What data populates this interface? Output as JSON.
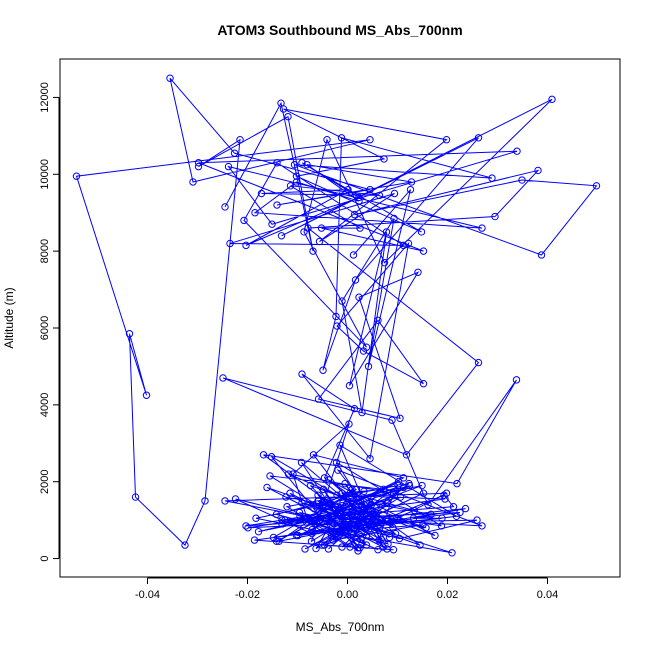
{
  "chart_data": {
    "type": "line",
    "title": "ATOM3 Southbound MS_Abs_700nm",
    "xlabel": "MS_Abs_700nm",
    "ylabel": "Altitude (m)",
    "xlim": [
      -0.0575,
      0.0545
    ],
    "ylim": [
      -480,
      13000
    ],
    "x_ticks": [
      -0.04,
      -0.02,
      0.0,
      0.02,
      0.04
    ],
    "x_tick_labels": [
      "-0.04",
      "-0.02",
      "0.00",
      "0.02",
      "0.04"
    ],
    "y_ticks": [
      0,
      2000,
      4000,
      6000,
      8000,
      10000,
      12000
    ],
    "y_tick_labels": [
      "0",
      "2000",
      "4000",
      "6000",
      "8000",
      "10000",
      "12000"
    ],
    "series_color": "#0000ff",
    "marker": "open-circle",
    "grid": false,
    "series": [
      {
        "x": [
          -0.0038,
          0.0007,
          -0.0102,
          0.0058,
          0.0029,
          -0.0048,
          0.0021,
          -0.0092,
          0.0084,
          -0.0031,
          0.0149,
          -0.0061,
          0.0043,
          -0.0118,
          0.0092,
          0.0063,
          -0.0068,
          0.0112,
          -0.0142,
          0.0102,
          0.0047,
          0.0005,
          -0.0082,
          0.0124,
          0.0019,
          -0.0011,
          0.0072,
          -0.0155,
          0.0038,
          -0.0096,
          0.0055,
          0.0009,
          -0.0059,
          0.0035,
          -0.0125,
          0.0068,
          -0.0021,
          0.0195,
          0.0017,
          -0.0199,
          0.0042,
          0.0259,
          0.0104,
          -0.0224,
          -0.0071,
          0.0151,
          -0.0029,
          0.0193,
          0.0212,
          -0.0131,
          0.0225,
          -0.0186,
          0.0092,
          -0.0051,
          0.0045,
          0.0167,
          0.0025,
          0.0189,
          0.0132,
          0.0236,
          0.0012,
          -0.0168,
          0.0219,
          0.0338,
          0.0161,
          0.0089,
          -0.0249,
          0.0118,
          0.0262,
          -0.0079,
          0.0295,
          0.0381,
          0.0014,
          0.0349,
          0.0498,
          0.0388,
          -0.0106,
          0.0289,
          -0.0012,
          -0.0023,
          -0.0049,
          0.0016,
          0.0262,
          -0.0132,
          0.0409,
          0.0074,
          -0.0041,
          -0.0087,
          0.0038,
          -0.0207,
          -0.0141,
          0.0112,
          -0.0235,
          0.0094,
          -0.0056,
          0.0198,
          -0.0128,
          0.0073,
          -0.0102,
          0.0148,
          -0.0091,
          0.0023,
          -0.0203,
          0.0001,
          -0.0172,
          0.0064,
          -0.0114,
          0.0025,
          -0.0052,
          0.0152,
          -0.0298,
          0.0339,
          -0.0151,
          -0.0238,
          0.0269,
          -0.0185,
          -0.0102,
          0.0023,
          -0.0081,
          0.0128,
          -0.0141,
          0.0045,
          -0.0226,
          -0.0355,
          -0.0309,
          0.0045,
          -0.0542,
          -0.0402,
          -0.0436,
          -0.0424,
          -0.0325,
          -0.0285,
          -0.0215,
          -0.0298,
          -0.0119,
          -0.0069,
          -0.0133,
          -0.0245
        ],
        "y": [
          250,
          780,
          600,
          1100,
          400,
          1800,
          280,
          2500,
          550,
          1400,
          1900,
          900,
          1300,
          2200,
          1700,
          480,
          2700,
          2100,
          450,
          2000,
          1600,
          300,
          950,
          1900,
          1150,
          1700,
          1800,
          2150,
          600,
          1200,
          750,
          1350,
          1500,
          780,
          1000,
          950,
          1650,
          1550,
          1250,
          800,
          950,
          1000,
          520,
          1550,
          650,
          880,
          480,
          1650,
          1350,
          1000,
          1200,
          480,
          230,
          350,
          1450,
          1150,
          850,
          1050,
          1050,
          1300,
          1000,
          2700,
          1950,
          4650,
          1400,
          3600,
          4700,
          2700,
          5100,
          8600,
          8900,
          10100,
          8950,
          9850,
          9700,
          7900,
          10250,
          9900,
          10950,
          6300,
          4900,
          7250,
          10950,
          8400,
          11950,
          7700,
          10900,
          8500,
          5500,
          8800,
          10300,
          8150,
          8200,
          9500,
          8250,
          10900,
          11700,
          10400,
          9950,
          8500,
          10300,
          9400,
          8150,
          9600,
          9500,
          9450,
          9700,
          8600,
          8600,
          8000,
          10300,
          10600,
          8700,
          10200,
          8600,
          9000,
          9800,
          9300,
          10250,
          9800,
          9200,
          9600,
          10550,
          12500,
          9800,
          10900,
          9950,
          4250,
          5850,
          1600,
          350,
          1500,
          10900,
          10200,
          11500,
          8000,
          11850,
          9150
        ],
        "point_order": [
          [
            0.0061,
            230
          ],
          [
            -0.0081,
            1050
          ],
          [
            -0.0109,
            2200
          ],
          [
            0.0003,
            3500
          ],
          [
            -0.0072,
            450
          ],
          [
            0.0048,
            1400
          ],
          [
            -0.0131,
            900
          ],
          [
            0.0123,
            1950
          ],
          [
            -0.0021,
            550
          ],
          [
            -0.0152,
            2650
          ],
          [
            0.0091,
            800
          ],
          [
            0.0009,
            1800
          ],
          [
            -0.0063,
            260
          ],
          [
            0.0106,
            1600
          ],
          [
            -0.0178,
            700
          ],
          [
            0.0032,
            1250
          ],
          [
            -0.0038,
            2050
          ],
          [
            0.0145,
            350
          ],
          [
            -0.0091,
            1450
          ],
          [
            0.0055,
            950
          ],
          [
            -0.0005,
            1950
          ],
          [
            0.0067,
            500
          ],
          [
            -0.0115,
            1700
          ],
          [
            0.0025,
            280
          ],
          [
            -0.0049,
            1300
          ],
          [
            0.0188,
            850
          ],
          [
            -0.0022,
            2500
          ],
          [
            0.0081,
            380
          ],
          [
            -0.0142,
            1150
          ],
          [
            0.0033,
            1750
          ],
          [
            -0.0071,
            750
          ],
          [
            0.0011,
            1250
          ],
          [
            -0.0099,
            600
          ],
          [
            0.0218,
            1100
          ],
          [
            -0.0015,
            2950
          ],
          [
            0.0071,
            300
          ],
          [
            -0.0161,
            1850
          ],
          [
            0.0047,
            900
          ],
          [
            -0.0058,
            1500
          ],
          [
            0.0021,
            200
          ],
          [
            -0.0121,
            1350
          ],
          [
            0.0101,
            1900
          ],
          [
            -0.0032,
            600
          ],
          [
            0.0152,
            1700
          ],
          [
            -0.0085,
            250
          ],
          [
            0.0029,
            1050
          ],
          [
            -0.0203,
            850
          ],
          [
            0.0079,
            1450
          ],
          [
            -0.0046,
            350
          ],
          [
            0.0134,
            1250
          ],
          [
            0.0005,
            1700
          ],
          [
            -0.0137,
            450
          ],
          [
            0.0061,
            950
          ],
          [
            -0.0019,
            2300
          ],
          [
            0.0269,
            850
          ],
          [
            -0.0095,
            1100
          ],
          [
            0.0038,
            350
          ],
          [
            -0.0059,
            1650
          ],
          [
            0.0096,
            650
          ],
          [
            -0.0245,
            1500
          ],
          [
            0.0198,
            1700
          ],
          [
            -0.0011,
            300
          ],
          [
            0.0112,
            1850
          ],
          [
            -0.0183,
            1050
          ],
          [
            0.0027,
            500
          ],
          [
            -0.0074,
            1900
          ],
          [
            0.0157,
            800
          ],
          [
            -0.0035,
            1400
          ],
          [
            0.0079,
            250
          ],
          [
            -0.0123,
            1600
          ],
          [
            0.0052,
            1150
          ],
          [
            -0.0031,
            700
          ],
          [
            0.0209,
            150
          ],
          [
            -0.0067,
            1300
          ],
          [
            0.0018,
            1800
          ],
          [
            -0.0148,
            550
          ],
          [
            0.0089,
            1000
          ],
          [
            -0.0009,
            1450
          ],
          [
            0.0175,
            600
          ],
          [
            -0.0046,
            2100
          ],
          [
            0.0014,
            3900
          ],
          [
            -0.0091,
            4800
          ],
          [
            0.0045,
            2600
          ],
          [
            0.0122,
            8200
          ],
          [
            -0.0021,
            6050
          ],
          [
            0.0032,
            5400
          ],
          [
            0.0152,
            4550
          ],
          [
            0.0061,
            6200
          ],
          [
            -0.0058,
            4150
          ],
          [
            0.0105,
            3650
          ],
          [
            0.0023,
            6800
          ],
          [
            0.0141,
            7450
          ],
          [
            0.0004,
            4500
          ],
          [
            0.0078,
            8500
          ],
          [
            0.0029,
            3800
          ],
          [
            -0.0011,
            6700
          ],
          [
            0.0093,
            8850
          ],
          [
            0.0042,
            5000
          ],
          [
            0.0126,
            9600
          ],
          [
            0.0012,
            7900
          ]
        ]
      }
    ]
  }
}
